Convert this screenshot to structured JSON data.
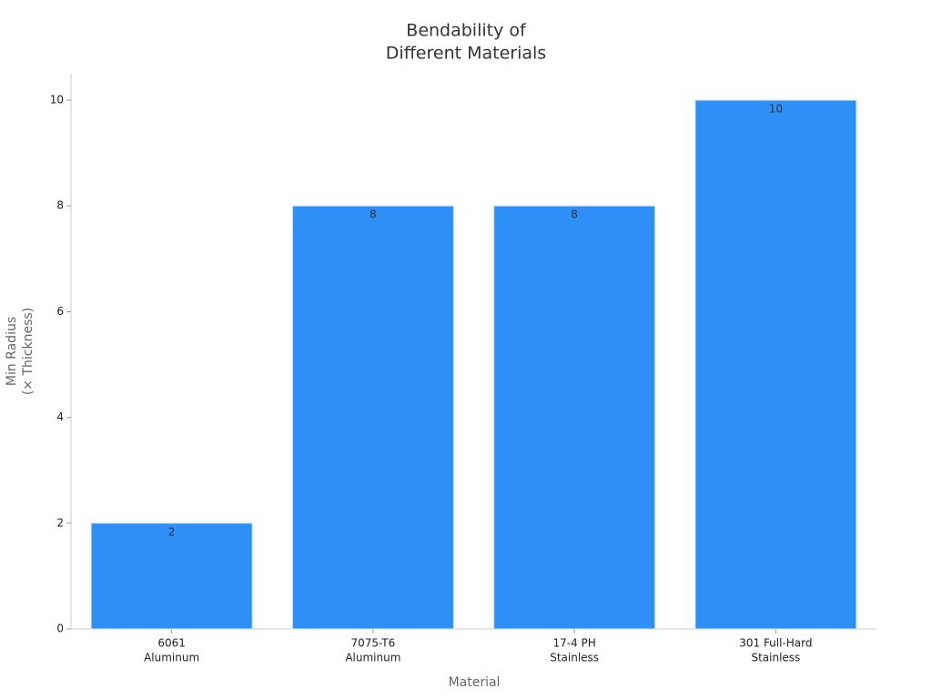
{
  "chart_data": {
    "type": "bar",
    "title": [
      "Bendability of",
      "Different Materials"
    ],
    "x_label": "Material",
    "y_label": [
      "Min Radius",
      "(× Thickness)"
    ],
    "categories": [
      [
        "6061",
        "Aluminum"
      ],
      [
        "7075-T6",
        "Aluminum"
      ],
      [
        "17-4 PH",
        "Stainless"
      ],
      [
        "301 Full-Hard",
        "Stainless"
      ]
    ],
    "values": [
      2,
      8,
      8,
      10
    ],
    "color": "#2e90f7",
    "ylim": [
      0,
      10.5
    ],
    "yticks": [
      0,
      2,
      4,
      6,
      8,
      10
    ],
    "grid": false
  }
}
